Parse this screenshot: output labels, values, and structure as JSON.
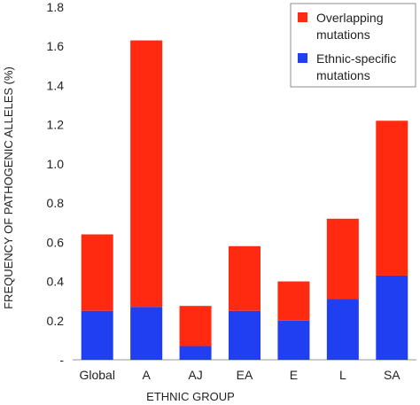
{
  "chart_data": {
    "type": "bar",
    "stacked": true,
    "categories": [
      "Global",
      "A",
      "AJ",
      "EA",
      "E",
      "L",
      "SA"
    ],
    "series": [
      {
        "name": "Ethnic-specific mutations",
        "color": "#1f3ff0",
        "values": [
          0.25,
          0.27,
          0.07,
          0.25,
          0.2,
          0.31,
          0.43
        ]
      },
      {
        "name": "Overlapping mutations",
        "color": "#ff2a0f",
        "values": [
          0.39,
          1.36,
          0.205,
          0.33,
          0.2,
          0.41,
          0.79
        ]
      }
    ],
    "legend_labels": [
      {
        "line1": "Overlapping",
        "line2": "mutations",
        "color": "#ff2a0f"
      },
      {
        "line1": "Ethnic-specific",
        "line2": "mutations",
        "color": "#1f3ff0"
      }
    ],
    "xlabel": "ETHNIC GROUP",
    "ylabel": "FREQUENCY OF PATHOGENIC ALLELES (%)",
    "ylim": [
      0,
      1.8
    ],
    "yticks": [
      "-",
      "0.2",
      "0.4",
      "0.6",
      "0.8",
      "1.0",
      "1.2",
      "1.4",
      "1.6",
      "1.8"
    ],
    "grid": false,
    "legend_position": "top-right"
  }
}
